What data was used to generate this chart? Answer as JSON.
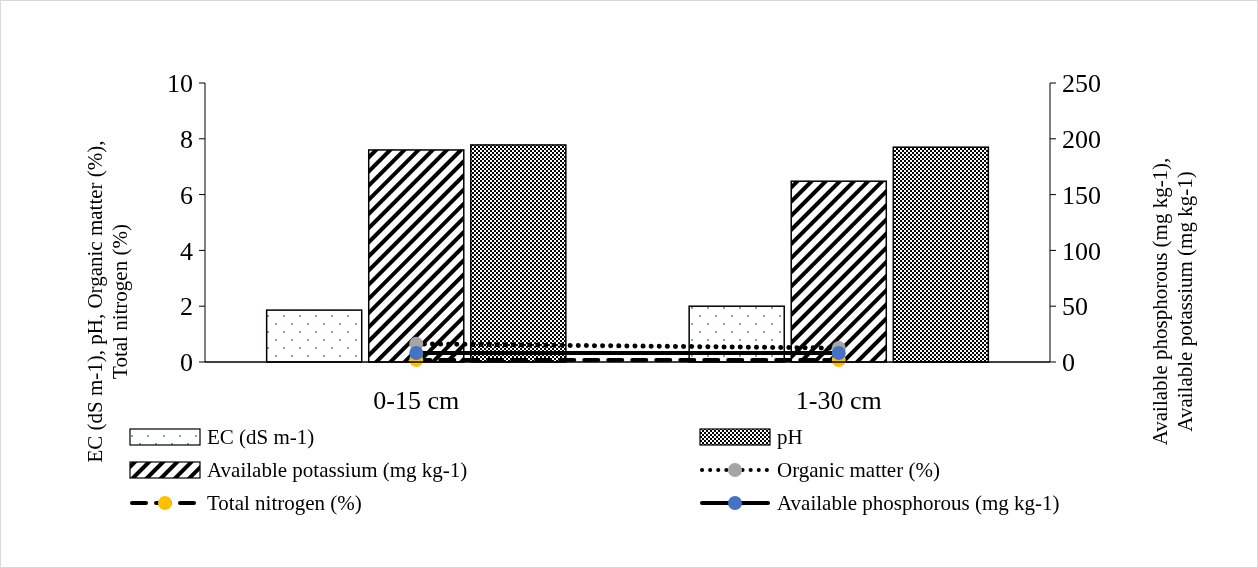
{
  "chart_data": {
    "type": "bar",
    "categories": [
      "0-15 cm",
      "1-30 cm"
    ],
    "ylabel": "EC (dS m-1), pH, Organic matter (%),\nTotal nitrogen (%)",
    "y2label": "Available phosphorous (mg kg-1),\nAvailable potassium (mg kg-1)",
    "ylim": [
      0,
      10
    ],
    "yticks": [
      0,
      2,
      4,
      6,
      8,
      10
    ],
    "y2lim": [
      0,
      250
    ],
    "y2ticks": [
      0,
      50,
      100,
      150,
      200,
      250
    ],
    "legend": "bottom",
    "grid": false,
    "series": [
      {
        "name": "EC (dS m-1)",
        "type": "bar",
        "color": "#000000",
        "values": [
          1.86,
          2.0
        ]
      },
      {
        "name": "Available potassium (mg kg-1)",
        "type": "bar",
        "axis": "y2",
        "color": "#000000",
        "values": [
          190,
          162
        ]
      },
      {
        "name": "Total nitrogen (%)",
        "type": "line",
        "color": "#ffc000",
        "marker": "circle",
        "line_style": "dashed",
        "values": [
          0.07,
          0.07
        ]
      },
      {
        "name": "pH",
        "type": "bar",
        "color": "#000000",
        "values": [
          7.78,
          7.7
        ]
      },
      {
        "name": "Organic matter (%)",
        "type": "line",
        "color": "#a5a5a5",
        "marker": "circle",
        "line_style": "dotted",
        "values": [
          0.65,
          0.5
        ]
      },
      {
        "name": "Available phosphorous (mg kg-1)",
        "type": "line",
        "axis": "y2",
        "color": "#4472c4",
        "marker": "circle",
        "line_style": "solid",
        "values": [
          8,
          8
        ]
      }
    ]
  }
}
